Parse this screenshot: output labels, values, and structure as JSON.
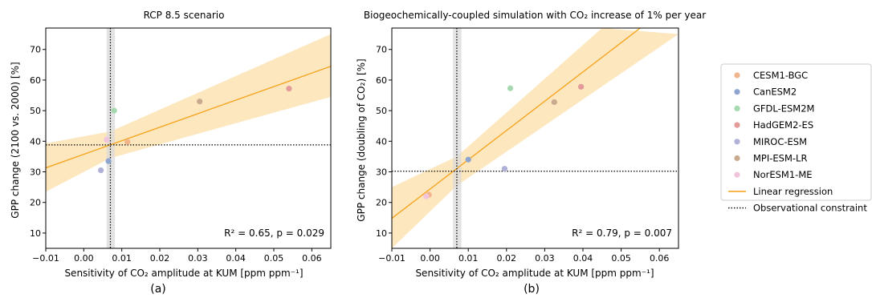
{
  "panels_meta": {
    "data_color_models": [
      "#f2b48a",
      "#8ea6cf",
      "#a6d9b0",
      "#e59a9a",
      "#b0b0d8",
      "#c9aa8e",
      "#f0c4dc"
    ],
    "regression_color": "#f5a623",
    "band_color": "#fde3b3",
    "constraint_shade_color": "#d9d9d9"
  },
  "legend": {
    "entries": [
      {
        "label": "CESM1-BGC",
        "color": "#f2b48a",
        "kind": "dot"
      },
      {
        "label": "CanESM2",
        "color": "#8ea6cf",
        "kind": "dot"
      },
      {
        "label": "GFDL-ESM2M",
        "color": "#a6d9b0",
        "kind": "dot"
      },
      {
        "label": "HadGEM2-ES",
        "color": "#e59a9a",
        "kind": "dot"
      },
      {
        "label": "MIROC-ESM",
        "color": "#b0b0d8",
        "kind": "dot"
      },
      {
        "label": "MPI-ESM-LR",
        "color": "#c9aa8e",
        "kind": "dot"
      },
      {
        "label": "NorESM1-ME",
        "color": "#f0c4dc",
        "kind": "dot"
      },
      {
        "label": "Linear regression",
        "color": "#f5a623",
        "kind": "line"
      },
      {
        "label": "Observational constraint",
        "color": "#000000",
        "kind": "dotted"
      }
    ]
  },
  "chart_data": [
    {
      "type": "scatter",
      "title": "RCP 8.5 scenario",
      "xlabel": "Sensitivity of CO₂ amplitude at KUM [ppm ppm⁻¹]",
      "ylabel": "GPP change (2100 vs. 2000) [%]",
      "panel_label": "(a)",
      "annotation": "R² = 0.65, p = 0.029",
      "xlim": [
        -0.01,
        0.065
      ],
      "ylim": [
        5,
        77
      ],
      "xticks": [
        -0.01,
        0.0,
        0.01,
        0.02,
        0.03,
        0.04,
        0.05,
        0.06
      ],
      "xtick_labels": [
        "−0.01",
        "0.00",
        "0.01",
        "0.02",
        "0.03",
        "0.04",
        "0.05",
        "0.06"
      ],
      "yticks": [
        10,
        20,
        30,
        40,
        50,
        60,
        70
      ],
      "ytick_labels": [
        "10",
        "20",
        "30",
        "40",
        "50",
        "60",
        "70"
      ],
      "points": [
        {
          "model": "CESM1-BGC",
          "x": 0.0115,
          "y": 39.8
        },
        {
          "model": "CanESM2",
          "x": 0.0065,
          "y": 33.5
        },
        {
          "model": "GFDL-ESM2M",
          "x": 0.008,
          "y": 50.0
        },
        {
          "model": "HadGEM2-ES",
          "x": 0.054,
          "y": 57.2
        },
        {
          "model": "MIROC-ESM",
          "x": 0.0045,
          "y": 30.5
        },
        {
          "model": "MPI-ESM-LR",
          "x": 0.0305,
          "y": 53.0
        },
        {
          "model": "NorESM1-ME",
          "x": 0.006,
          "y": 40.5
        }
      ],
      "regression": {
        "x": [
          -0.01,
          0.065
        ],
        "y": [
          31.3,
          64.5
        ]
      },
      "band_upper": {
        "x": [
          -0.01,
          0.007,
          0.065
        ],
        "y": [
          39.3,
          43.2,
          75.0
        ]
      },
      "band_lower": {
        "x": [
          -0.01,
          0.007,
          0.065
        ],
        "y": [
          23.5,
          34.5,
          54.5
        ]
      },
      "obs_constraint": {
        "x": 0.007,
        "x_range": [
          0.006,
          0.0082
        ],
        "y": 38.8
      }
    },
    {
      "type": "scatter",
      "title": "Biogeochemically-coupled simulation with CO₂ increase of 1% per year",
      "xlabel": "Sensitivity of CO₂ amplitude at KUM [ppm ppm⁻¹]",
      "ylabel": "GPP change (doubling of CO₂) [%]",
      "panel_label": "(b)",
      "annotation": "R² = 0.79, p = 0.007",
      "xlim": [
        -0.01,
        0.065
      ],
      "ylim": [
        5,
        77
      ],
      "xticks": [
        -0.01,
        0.0,
        0.01,
        0.02,
        0.03,
        0.04,
        0.05,
        0.06
      ],
      "xtick_labels": [
        "−0.01",
        "0.00",
        "0.01",
        "0.02",
        "0.03",
        "0.04",
        "0.05",
        "0.06"
      ],
      "yticks": [
        10,
        20,
        30,
        40,
        50,
        60,
        70
      ],
      "ytick_labels": [
        "10",
        "20",
        "30",
        "40",
        "50",
        "60",
        "70"
      ],
      "points": [
        {
          "model": "CESM1-BGC",
          "x": -0.0003,
          "y": 22.5
        },
        {
          "model": "CanESM2",
          "x": 0.01,
          "y": 34.0
        },
        {
          "model": "GFDL-ESM2M",
          "x": 0.021,
          "y": 57.3
        },
        {
          "model": "HadGEM2-ES",
          "x": 0.0395,
          "y": 57.8
        },
        {
          "model": "MIROC-ESM",
          "x": 0.0195,
          "y": 31.0
        },
        {
          "model": "MPI-ESM-LR",
          "x": 0.0325,
          "y": 52.8
        },
        {
          "model": "NorESM1-ME",
          "x": -0.001,
          "y": 22.0
        }
      ],
      "regression": {
        "x": [
          -0.01,
          0.055
        ],
        "y": [
          14.8,
          77
        ]
      },
      "band_upper": {
        "x": [
          -0.01,
          0.007,
          0.045
        ],
        "y": [
          25.0,
          35.0,
          77.0
        ]
      },
      "band_lower": {
        "x": [
          -0.01,
          0.007,
          0.065
        ],
        "y": [
          5.0,
          25.5,
          75.0
        ]
      },
      "obs_constraint": {
        "x": 0.007,
        "x_range": [
          0.006,
          0.0082
        ],
        "y": 30.2
      }
    }
  ]
}
